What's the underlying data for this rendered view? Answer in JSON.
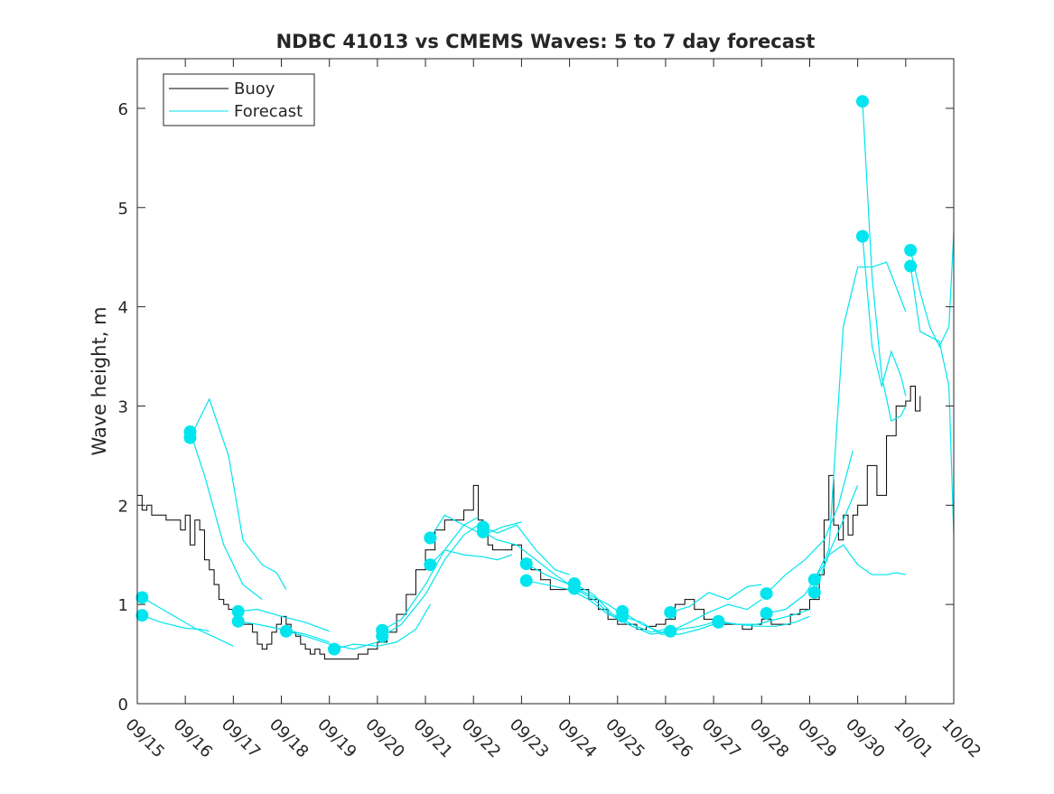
{
  "chart_data": {
    "type": "line",
    "title": "NDBC 41013 vs CMEMS Waves: 5 to 7 day forecast",
    "xlabel": "",
    "ylabel": "Wave height, m",
    "xlim": [
      0,
      17
    ],
    "ylim": [
      0,
      6.5
    ],
    "x_tick_values": [
      0,
      1,
      2,
      3,
      4,
      5,
      6,
      7,
      8,
      9,
      10,
      11,
      12,
      13,
      14,
      15,
      16,
      17
    ],
    "x_tick_labels": [
      "09/15",
      "09/16",
      "09/17",
      "09/18",
      "09/19",
      "09/20",
      "09/21",
      "09/22",
      "09/23",
      "09/24",
      "09/25",
      "09/26",
      "09/27",
      "09/28",
      "09/29",
      "09/30",
      "10/01",
      "10/02"
    ],
    "y_ticks": [
      0,
      1,
      2,
      3,
      4,
      5,
      6
    ],
    "grid": false,
    "legend": {
      "position": "top-left",
      "entries": [
        {
          "label": "Buoy",
          "color": "#000000"
        },
        {
          "label": "Forecast",
          "color": "#00e5ee"
        }
      ]
    },
    "colors": {
      "buoy": "#000000",
      "forecast": "#00e5ee"
    },
    "buoy": {
      "name": "Buoy",
      "x": [
        0,
        0.1,
        0.2,
        0.3,
        0.4,
        0.6,
        0.8,
        0.9,
        1.0,
        1.1,
        1.2,
        1.3,
        1.4,
        1.5,
        1.6,
        1.7,
        1.8,
        1.9,
        2.0,
        2.1,
        2.2,
        2.3,
        2.4,
        2.5,
        2.6,
        2.7,
        2.8,
        2.9,
        3.0,
        3.1,
        3.2,
        3.3,
        3.4,
        3.5,
        3.6,
        3.7,
        3.8,
        3.9,
        4.0,
        4.2,
        4.4,
        4.6,
        4.8,
        5.0,
        5.2,
        5.4,
        5.6,
        5.8,
        6.0,
        6.2,
        6.4,
        6.6,
        6.8,
        7.0,
        7.1,
        7.2,
        7.3,
        7.4,
        7.6,
        7.8,
        8.0,
        8.2,
        8.4,
        8.6,
        8.8,
        9.0,
        9.2,
        9.4,
        9.6,
        9.8,
        10.0,
        10.2,
        10.4,
        10.6,
        10.8,
        11.0,
        11.2,
        11.4,
        11.6,
        11.8,
        12.0,
        12.2,
        12.4,
        12.6,
        12.8,
        13.0,
        13.2,
        13.4,
        13.6,
        13.8,
        14.0,
        14.2,
        14.3,
        14.4,
        14.5,
        14.6,
        14.7,
        14.8,
        14.9,
        15.0,
        15.2,
        15.4,
        15.6,
        15.8,
        16.0,
        16.1,
        16.2,
        16.3
      ],
      "values": [
        2.1,
        1.95,
        2.0,
        1.9,
        1.9,
        1.85,
        1.85,
        1.75,
        1.9,
        1.6,
        1.85,
        1.75,
        1.45,
        1.35,
        1.2,
        1.05,
        1.0,
        0.95,
        0.95,
        0.85,
        0.8,
        0.8,
        0.72,
        0.6,
        0.55,
        0.6,
        0.72,
        0.8,
        0.88,
        0.8,
        0.72,
        0.68,
        0.6,
        0.55,
        0.5,
        0.55,
        0.5,
        0.45,
        0.45,
        0.45,
        0.45,
        0.5,
        0.55,
        0.62,
        0.72,
        0.9,
        1.1,
        1.35,
        1.55,
        1.75,
        1.85,
        1.85,
        1.95,
        2.2,
        1.85,
        1.7,
        1.6,
        1.55,
        1.55,
        1.6,
        1.45,
        1.35,
        1.25,
        1.15,
        1.15,
        1.15,
        1.15,
        1.05,
        0.95,
        0.85,
        0.8,
        0.8,
        0.75,
        0.78,
        0.8,
        0.85,
        1.0,
        1.05,
        0.95,
        0.85,
        0.82,
        0.8,
        0.8,
        0.75,
        0.8,
        0.85,
        0.8,
        0.8,
        0.9,
        0.95,
        1.05,
        1.3,
        1.85,
        2.3,
        1.8,
        1.65,
        1.9,
        1.7,
        1.9,
        2.0,
        2.4,
        2.1,
        2.7,
        3.0,
        3.05,
        3.2,
        2.95,
        3.1
      ]
    },
    "forecast_series": [
      {
        "name": "Forecast",
        "x": [
          0.1,
          0.6,
          1.2,
          1.7,
          2.0
        ],
        "values": [
          1.07,
          0.93,
          0.76,
          0.65,
          0.58
        ]
      },
      {
        "name": "Forecast",
        "x": [
          0.1,
          0.5,
          1.0,
          1.3,
          1.5
        ],
        "values": [
          0.89,
          0.82,
          0.76,
          0.75,
          0.73
        ]
      },
      {
        "name": "Forecast",
        "x": [
          1.1,
          1.4,
          1.8,
          2.2,
          2.6
        ],
        "values": [
          2.74,
          2.3,
          1.6,
          1.2,
          1.05
        ]
      },
      {
        "name": "Forecast",
        "x": [
          1.1,
          1.5,
          1.9,
          2.2,
          2.6,
          2.9,
          3.1
        ],
        "values": [
          2.68,
          3.07,
          2.5,
          1.65,
          1.4,
          1.32,
          1.15
        ]
      },
      {
        "name": "Forecast",
        "x": [
          2.1,
          2.5,
          3.0,
          3.5,
          4.0
        ],
        "values": [
          0.93,
          0.95,
          0.88,
          0.82,
          0.73
        ]
      },
      {
        "name": "Forecast",
        "x": [
          2.1,
          2.5,
          3.0,
          3.5,
          4.0
        ],
        "values": [
          0.83,
          0.8,
          0.75,
          0.7,
          0.62
        ]
      },
      {
        "name": "Forecast",
        "x": [
          3.1,
          3.5,
          4.0,
          4.5,
          5.0
        ],
        "values": [
          0.73,
          0.68,
          0.6,
          0.55,
          0.62
        ]
      },
      {
        "name": "Forecast",
        "x": [
          4.1,
          4.5,
          5.0,
          5.4,
          5.8,
          6.1
        ],
        "values": [
          0.55,
          0.6,
          0.58,
          0.62,
          0.75,
          1.0
        ]
      },
      {
        "name": "Forecast",
        "x": [
          5.1,
          5.5,
          6.0,
          6.4,
          6.8,
          7.1
        ],
        "values": [
          0.74,
          0.85,
          1.2,
          1.55,
          1.8,
          1.88
        ]
      },
      {
        "name": "Forecast",
        "x": [
          5.1,
          5.5,
          6.0,
          6.4,
          6.8,
          7.1
        ],
        "values": [
          0.68,
          0.8,
          1.1,
          1.45,
          1.7,
          1.8
        ]
      },
      {
        "name": "Forecast",
        "x": [
          6.1,
          6.4,
          6.8,
          7.2,
          7.6,
          8.0
        ],
        "values": [
          1.67,
          1.9,
          1.8,
          1.7,
          1.78,
          1.83
        ]
      },
      {
        "name": "Forecast",
        "x": [
          6.1,
          6.4,
          6.8,
          7.2,
          7.5,
          7.8
        ],
        "values": [
          1.4,
          1.55,
          1.5,
          1.48,
          1.45,
          1.5
        ]
      },
      {
        "name": "Forecast",
        "x": [
          7.2,
          7.5,
          7.9,
          8.3,
          8.7,
          9.0
        ],
        "values": [
          1.78,
          1.72,
          1.8,
          1.55,
          1.35,
          1.3
        ]
      },
      {
        "name": "Forecast",
        "x": [
          7.2,
          7.5,
          7.9,
          8.3,
          8.7,
          9.0
        ],
        "values": [
          1.73,
          1.65,
          1.6,
          1.45,
          1.3,
          1.2
        ]
      },
      {
        "name": "Forecast",
        "x": [
          8.1,
          8.5,
          9.0,
          9.4,
          9.8,
          10.1
        ],
        "values": [
          1.41,
          1.3,
          1.2,
          1.1,
          1.0,
          0.9
        ]
      },
      {
        "name": "Forecast",
        "x": [
          8.1,
          8.5,
          9.0,
          9.4,
          9.8,
          10.1
        ],
        "values": [
          1.24,
          1.2,
          1.15,
          1.05,
          0.9,
          0.85
        ]
      },
      {
        "name": "Forecast",
        "x": [
          9.1,
          9.5,
          9.9,
          10.3,
          10.7,
          11.0
        ],
        "values": [
          1.21,
          1.1,
          0.9,
          0.8,
          0.72,
          0.75
        ]
      },
      {
        "name": "Forecast",
        "x": [
          9.1,
          9.5,
          9.9,
          10.3,
          10.7,
          11.0
        ],
        "values": [
          1.16,
          1.05,
          0.88,
          0.78,
          0.7,
          0.72
        ]
      },
      {
        "name": "Forecast",
        "x": [
          10.1,
          10.5,
          10.9,
          11.3,
          11.7,
          12.0
        ],
        "values": [
          0.93,
          0.8,
          0.72,
          0.75,
          0.78,
          0.82
        ]
      },
      {
        "name": "Forecast",
        "x": [
          10.1,
          10.5,
          10.9,
          11.3,
          11.7,
          12.0
        ],
        "values": [
          0.88,
          0.82,
          0.7,
          0.7,
          0.75,
          0.8
        ]
      },
      {
        "name": "Forecast",
        "x": [
          11.1,
          11.5,
          11.9,
          12.3,
          12.7,
          13.0
        ],
        "values": [
          0.92,
          0.98,
          1.12,
          1.05,
          1.18,
          1.2
        ]
      },
      {
        "name": "Forecast",
        "x": [
          11.1,
          11.5,
          11.9,
          12.3,
          12.7,
          13.0
        ],
        "values": [
          0.73,
          0.82,
          0.92,
          1.0,
          0.95,
          1.05
        ]
      },
      {
        "name": "Forecast",
        "x": [
          12.1,
          12.5,
          12.9,
          13.3,
          13.7,
          14.0
        ],
        "values": [
          0.83,
          0.8,
          0.8,
          0.85,
          0.9,
          0.95
        ]
      },
      {
        "name": "Forecast",
        "x": [
          12.1,
          12.5,
          12.9,
          13.3,
          13.7,
          14.0
        ],
        "values": [
          0.82,
          0.8,
          0.78,
          0.78,
          0.82,
          0.88
        ]
      },
      {
        "name": "Forecast",
        "x": [
          13.1,
          13.5,
          13.9,
          14.3,
          14.6,
          14.9
        ],
        "values": [
          1.11,
          1.3,
          1.45,
          1.65,
          2.0,
          2.55
        ]
      },
      {
        "name": "Forecast",
        "x": [
          13.1,
          13.5,
          13.9,
          14.3,
          14.7,
          15.0
        ],
        "values": [
          0.91,
          0.95,
          1.1,
          1.4,
          1.85,
          2.2
        ]
      },
      {
        "name": "Forecast",
        "x": [
          14.1,
          14.4,
          14.7,
          15.0,
          15.3,
          15.6,
          15.8,
          16.0
        ],
        "values": [
          1.25,
          1.55,
          3.8,
          4.4,
          4.4,
          4.45,
          4.2,
          3.95
        ]
      },
      {
        "name": "Forecast",
        "x": [
          14.1,
          14.4,
          14.7,
          15.0,
          15.3,
          15.6,
          15.8,
          16.0
        ],
        "values": [
          1.12,
          1.5,
          1.6,
          1.4,
          1.3,
          1.3,
          1.32,
          1.3
        ]
      },
      {
        "name": "Forecast",
        "x": [
          15.1,
          15.3,
          15.5,
          15.7,
          15.9,
          16.0
        ],
        "values": [
          4.71,
          3.6,
          3.2,
          3.55,
          3.3,
          3.1
        ]
      },
      {
        "name": "Forecast",
        "x": [
          15.1,
          15.3,
          15.5,
          15.7,
          15.9,
          16.0
        ],
        "values": [
          6.07,
          4.3,
          3.3,
          2.85,
          2.9,
          3.0
        ]
      },
      {
        "name": "Forecast",
        "x": [
          16.1,
          16.3,
          16.5,
          16.7,
          16.9,
          17.0
        ],
        "values": [
          4.57,
          4.15,
          3.8,
          3.6,
          3.8,
          4.75
        ]
      },
      {
        "name": "Forecast",
        "x": [
          16.1,
          16.3,
          16.5,
          16.7,
          16.9,
          17.0
        ],
        "values": [
          4.41,
          3.75,
          3.7,
          3.65,
          3.2,
          1.7
        ]
      }
    ]
  }
}
